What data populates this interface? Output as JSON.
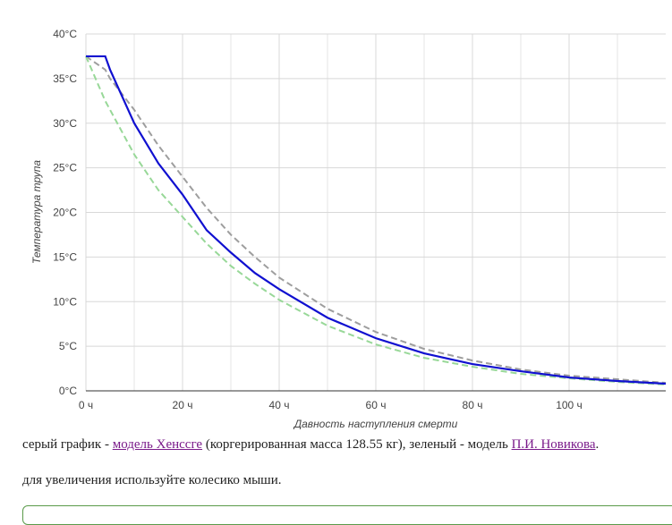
{
  "chart_data": {
    "type": "line",
    "xlabel": "Давность наступления смерти",
    "ylabel": "Температура трупа",
    "x": [
      0,
      4,
      5,
      10,
      15,
      20,
      25,
      30,
      35,
      40,
      50,
      60,
      70,
      80,
      90,
      100,
      110,
      120
    ],
    "series": [
      {
        "color": "#9e9e9e",
        "dash": true,
        "values": [
          37.5,
          36,
          35,
          31.5,
          27.5,
          24,
          20.5,
          17.5,
          15,
          12.7,
          9.2,
          6.6,
          4.7,
          3.4,
          2.4,
          1.7,
          1.3,
          0.9
        ]
      },
      {
        "color": "#98d898",
        "dash": true,
        "values": [
          37.5,
          32.5,
          31.5,
          26.5,
          22.5,
          19.5,
          16.5,
          14,
          12,
          10.2,
          7.3,
          5.2,
          3.7,
          2.7,
          1.9,
          1.4,
          1.0,
          0.7
        ]
      },
      {
        "color": "#1010d0",
        "dash": false,
        "values": [
          37.5,
          37.5,
          36,
          30,
          25.5,
          22,
          18,
          15.5,
          13.2,
          11.4,
          8.2,
          5.9,
          4.2,
          3.0,
          2.2,
          1.5,
          1.1,
          0.8
        ]
      }
    ],
    "xlim": [
      0,
      120
    ],
    "xticks": [
      {
        "value": 0,
        "label": "0 ч"
      },
      {
        "value": 20,
        "label": "20 ч"
      },
      {
        "value": 40,
        "label": "40 ч"
      },
      {
        "value": 60,
        "label": "60 ч"
      },
      {
        "value": 80,
        "label": "80 ч"
      },
      {
        "value": 100,
        "label": "100 ч"
      }
    ],
    "xminor": [
      10,
      30,
      50,
      70,
      90,
      110
    ],
    "ylim": [
      0,
      40
    ],
    "yticks": [
      {
        "value": 0,
        "label": "0°C"
      },
      {
        "value": 5,
        "label": "5°C"
      },
      {
        "value": 10,
        "label": "10°C"
      },
      {
        "value": 15,
        "label": "15°C"
      },
      {
        "value": 20,
        "label": "20°C"
      },
      {
        "value": 25,
        "label": "25°C"
      },
      {
        "value": 30,
        "label": "30°C"
      },
      {
        "value": 35,
        "label": "35°C"
      },
      {
        "value": 40,
        "label": "40°C"
      }
    ],
    "grid": true
  },
  "notes": {
    "line1": [
      "серый график - ",
      "модель Хенссге",
      " (коргерированная масса 128.55 кг), зеленый - модель ",
      "П.И. Новикова",
      "."
    ],
    "line2": "для увеличения используйте колесико мыши."
  }
}
